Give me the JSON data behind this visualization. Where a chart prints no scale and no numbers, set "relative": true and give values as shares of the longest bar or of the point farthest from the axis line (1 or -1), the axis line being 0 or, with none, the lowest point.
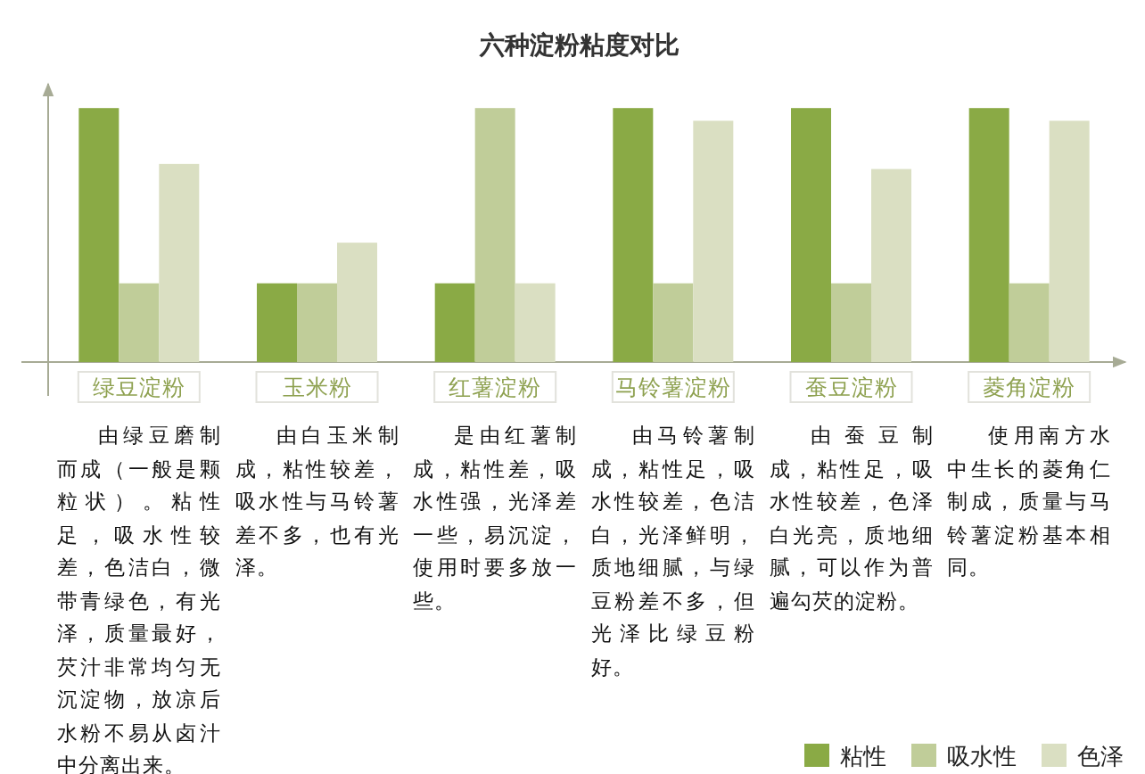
{
  "chart_data": {
    "type": "bar",
    "title": "六种淀粉粘度对比",
    "categories": [
      "绿豆淀粉",
      "玉米粉",
      "红薯淀粉",
      "马铃薯淀粉",
      "蚕豆淀粉",
      "菱角淀粉"
    ],
    "relative": true,
    "series": [
      {
        "name": "粘性",
        "color": "#8aaa45",
        "values": [
          1,
          0.31,
          0.31,
          1,
          1,
          1
        ]
      },
      {
        "name": "吸水性",
        "color": "#c0cd99",
        "values": [
          0.31,
          0.31,
          1,
          0.31,
          0.31,
          0.31
        ]
      },
      {
        "name": "色泽",
        "color": "#dadfc2",
        "values": [
          0.78,
          0.47,
          0.31,
          0.95,
          0.76,
          0.95
        ]
      }
    ],
    "legend": "bottom right",
    "annotations": [
      "由绿豆磨制而成（一般是颗粒状）。粘性足，吸水性较差，色洁白，微带青绿色，有光泽，质量最好，芡汁非常均匀无沉淀物，放凉后水粉不易从卤汁中分离出来。",
      "由白玉米制成，粘性较差，吸水性与马铃薯差不多，也有光泽。",
      "是由红薯制成，粘性差，吸水性强，光泽差一些，易沉淀，使用时要多放一些。",
      "由马铃薯制成，粘性足，吸水性较差，色洁白，光泽鲜明，质地细腻，与绿豆粉差不多，但光泽比绿豆粉好。",
      "由蚕豆制成，粘性足，吸水性较差，色泽白光亮，质地细腻，可以作为普遍勾芡的淀粉。",
      "使用南方水中生长的菱角仁制成，质量与马铃薯淀粉基本相同。"
    ]
  }
}
